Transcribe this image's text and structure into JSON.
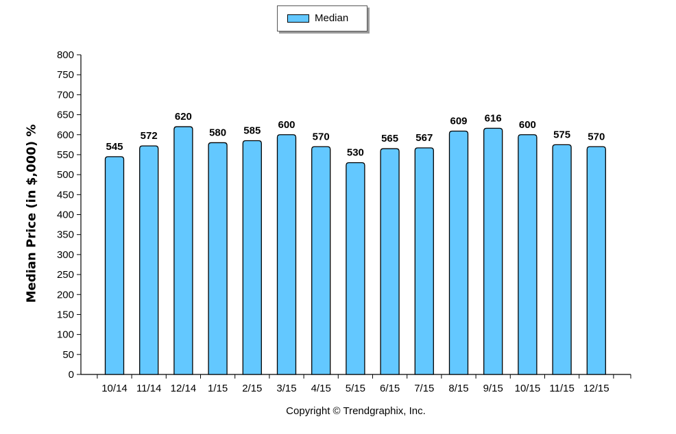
{
  "chart_data": {
    "type": "bar",
    "categories": [
      "10/14",
      "11/14",
      "12/14",
      "1/15",
      "2/15",
      "3/15",
      "4/15",
      "5/15",
      "6/15",
      "7/15",
      "8/15",
      "9/15",
      "10/15",
      "11/15",
      "12/15"
    ],
    "series": [
      {
        "name": "Median",
        "values": [
          545,
          572,
          620,
          580,
          585,
          600,
          570,
          530,
          565,
          567,
          609,
          616,
          600,
          575,
          570
        ]
      }
    ],
    "ylabel": "Median Price (in $,000) %",
    "xlabel": "",
    "ylim": [
      0,
      800
    ],
    "yticks": [
      0,
      50,
      100,
      150,
      200,
      250,
      300,
      350,
      400,
      450,
      500,
      550,
      600,
      650,
      700,
      750,
      800
    ],
    "legend_position": "top-center",
    "grid": false,
    "bar_color": "#63c8ff"
  },
  "legend": {
    "label": "Median"
  },
  "footer": {
    "copyright": "Copyright © Trendgraphix, Inc."
  }
}
